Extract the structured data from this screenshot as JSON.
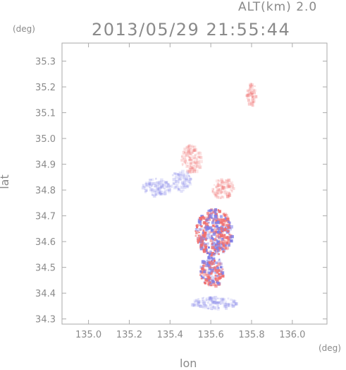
{
  "header": {
    "altitude_label": "ALT(km) 2.0",
    "timestamp": "2013/05/29 21:55:44"
  },
  "axes": {
    "x_title": "lon",
    "y_title": "lat",
    "x_unit": "(deg)",
    "y_unit": "(deg)"
  },
  "chart_data": {
    "type": "heatmap",
    "xlim": [
      134.87,
      136.17
    ],
    "ylim": [
      34.28,
      35.37
    ],
    "x_ticks": [
      135.0,
      135.2,
      135.4,
      135.6,
      135.8,
      136.0
    ],
    "x_tick_labels": [
      "135.0",
      "135.2",
      "135.4",
      "135.6",
      "135.8",
      "136.0"
    ],
    "y_ticks": [
      34.3,
      34.4,
      34.5,
      34.6,
      34.7,
      34.8,
      34.9,
      35.0,
      35.1,
      35.2,
      35.3
    ],
    "y_tick_labels": [
      "34.3",
      "34.4",
      "34.5",
      "34.6",
      "34.7",
      "34.8",
      "34.9",
      "35.0",
      "35.1",
      "35.2",
      "35.3"
    ],
    "colors": {
      "positive": "#f07070",
      "negative": "#8080e8",
      "frame": "#aaaaaa"
    },
    "echo_regions": [
      {
        "lon": [
          135.45,
          135.55
        ],
        "lat": [
          34.87,
          34.98
        ],
        "sign": "positive",
        "intensity": 0.25
      },
      {
        "lon": [
          135.26,
          135.4
        ],
        "lat": [
          34.78,
          34.85
        ],
        "sign": "negative",
        "intensity": 0.25
      },
      {
        "lon": [
          135.4,
          135.5
        ],
        "lat": [
          34.8,
          34.88
        ],
        "sign": "negative",
        "intensity": 0.2
      },
      {
        "lon": [
          135.6,
          135.71
        ],
        "lat": [
          34.77,
          34.85
        ],
        "sign": "positive",
        "intensity": 0.3
      },
      {
        "lon": [
          135.52,
          135.7
        ],
        "lat": [
          34.55,
          34.73
        ],
        "sign": "mixed",
        "intensity": 0.8
      },
      {
        "lon": [
          135.54,
          135.66
        ],
        "lat": [
          34.43,
          34.55
        ],
        "sign": "mixed",
        "intensity": 0.75
      },
      {
        "lon": [
          135.5,
          135.72
        ],
        "lat": [
          34.34,
          34.39
        ],
        "sign": "negative",
        "intensity": 0.3
      },
      {
        "lon": [
          135.77,
          135.82
        ],
        "lat": [
          35.13,
          35.22
        ],
        "sign": "positive",
        "intensity": 0.45
      }
    ]
  }
}
